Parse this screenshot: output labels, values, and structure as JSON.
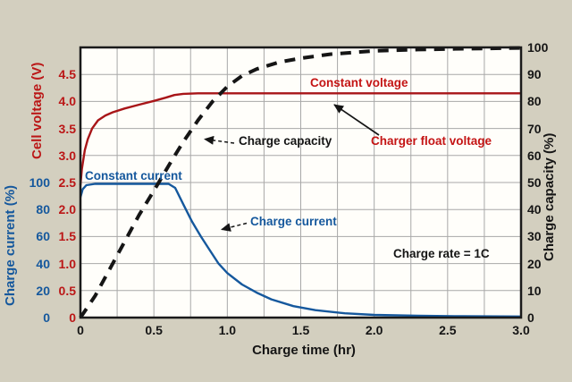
{
  "figure": {
    "background": "#d3cfbf",
    "plot_background": "#fffefa",
    "grid_color": "#a8a8a8",
    "border_color": "#1a1a1a"
  },
  "chart_data": {
    "type": "line",
    "title": "",
    "grid": {
      "x_step": 0.25,
      "y_step_voltage": 0.5,
      "grid_on": true
    },
    "x_axis": {
      "label": "Charge time (hr)",
      "min": 0,
      "max": 3,
      "tick_values": [
        0,
        0.5,
        1.0,
        1.5,
        2.0,
        2.5,
        3.0
      ],
      "tick_labels": [
        "0",
        "0.5",
        "1.0",
        "1.5",
        "2.0",
        "2.5",
        "3.0"
      ]
    },
    "axes": {
      "voltage": {
        "label": "Cell voltage (V)",
        "side": "left",
        "color": "#bb1717",
        "min": 0,
        "max": 5,
        "span": 1,
        "tick_values": [
          4.5,
          4.0,
          3.5,
          3.0,
          2.5,
          2.0,
          1.5,
          1.0,
          0.5,
          0
        ],
        "tick_labels": [
          "4.5",
          "4.0",
          "3.5",
          "3.0",
          "2.5",
          "2.0",
          "1.5",
          "1.0",
          "0.5",
          "0"
        ]
      },
      "current": {
        "label": "Charge current (%)",
        "side": "left-outer",
        "color": "#15589d",
        "min": 0,
        "max": 100,
        "span": 0.5,
        "tick_values": [
          100,
          80,
          60,
          40,
          20,
          0
        ],
        "tick_labels": [
          "100",
          "80",
          "60",
          "40",
          "20",
          "0"
        ]
      },
      "capacity": {
        "label": "Charge capacity (%)",
        "side": "right",
        "color": "#151515",
        "min": 0,
        "max": 100,
        "span": 1,
        "tick_values": [
          100,
          90,
          80,
          70,
          60,
          50,
          40,
          30,
          20,
          10,
          0
        ],
        "tick_labels": [
          "100",
          "90",
          "80",
          "70",
          "60",
          "50",
          "40",
          "30",
          "20",
          "10",
          "0"
        ]
      }
    },
    "series": [
      {
        "id": "cell-voltage-curve",
        "name": "Cell voltage (constant voltage)",
        "axis": "voltage",
        "color": "#a81518",
        "width": 2.4,
        "dash": "",
        "points": [
          [
            0,
            2.45
          ],
          [
            0.01,
            2.75
          ],
          [
            0.03,
            3.1
          ],
          [
            0.05,
            3.3
          ],
          [
            0.08,
            3.5
          ],
          [
            0.12,
            3.65
          ],
          [
            0.17,
            3.74
          ],
          [
            0.22,
            3.8
          ],
          [
            0.3,
            3.87
          ],
          [
            0.4,
            3.94
          ],
          [
            0.5,
            4.01
          ],
          [
            0.58,
            4.07
          ],
          [
            0.64,
            4.12
          ],
          [
            0.7,
            4.14
          ],
          [
            0.8,
            4.15
          ],
          [
            1.0,
            4.15
          ],
          [
            1.5,
            4.15
          ],
          [
            2.0,
            4.15
          ],
          [
            2.5,
            4.15
          ],
          [
            3.0,
            4.15
          ]
        ]
      },
      {
        "id": "charge-current-curve",
        "name": "Charge current",
        "axis": "current",
        "color": "#15589d",
        "width": 2.4,
        "dash": "",
        "points": [
          [
            0,
            89
          ],
          [
            0.015,
            95
          ],
          [
            0.04,
            98
          ],
          [
            0.1,
            99
          ],
          [
            0.3,
            99
          ],
          [
            0.6,
            99
          ],
          [
            0.645,
            96
          ],
          [
            0.7,
            84
          ],
          [
            0.76,
            71
          ],
          [
            0.82,
            60
          ],
          [
            0.88,
            50
          ],
          [
            0.94,
            40
          ],
          [
            1.0,
            33
          ],
          [
            1.1,
            24.5
          ],
          [
            1.2,
            18.5
          ],
          [
            1.3,
            13.5
          ],
          [
            1.45,
            8.5
          ],
          [
            1.6,
            5.5
          ],
          [
            1.8,
            3.2
          ],
          [
            2.0,
            2
          ],
          [
            2.3,
            1.3
          ],
          [
            2.6,
            1
          ],
          [
            3.0,
            0.8
          ]
        ]
      },
      {
        "id": "charge-capacity-curve",
        "name": "Charge capacity",
        "axis": "capacity",
        "color": "#151515",
        "width": 4,
        "dash": "12 9",
        "points": [
          [
            0,
            0
          ],
          [
            0.1,
            8
          ],
          [
            0.2,
            18
          ],
          [
            0.3,
            28
          ],
          [
            0.4,
            38
          ],
          [
            0.5,
            47
          ],
          [
            0.62,
            58
          ],
          [
            0.7,
            65
          ],
          [
            0.8,
            73
          ],
          [
            0.9,
            80
          ],
          [
            1.0,
            85.5
          ],
          [
            1.1,
            89.5
          ],
          [
            1.2,
            92
          ],
          [
            1.35,
            94.5
          ],
          [
            1.5,
            96
          ],
          [
            1.7,
            97.5
          ],
          [
            2.0,
            98.7
          ],
          [
            2.3,
            99.2
          ],
          [
            2.6,
            99.5
          ],
          [
            3.0,
            99.8
          ]
        ]
      }
    ],
    "annotations": [
      {
        "id": "constant-current",
        "text": "Constant current",
        "color": "#15589d"
      },
      {
        "id": "constant-voltage",
        "text": "Constant voltage",
        "color": "#c41414"
      },
      {
        "id": "charge-capacity",
        "text": "Charge capacity",
        "color": "#151515"
      },
      {
        "id": "charger-float-voltage",
        "text": "Charger float voltage",
        "color": "#c41414"
      },
      {
        "id": "charge-current",
        "text": "Charge current",
        "color": "#15589d"
      },
      {
        "id": "charge-rate",
        "text": "Charge rate = 1C",
        "color": "#151515"
      }
    ]
  }
}
